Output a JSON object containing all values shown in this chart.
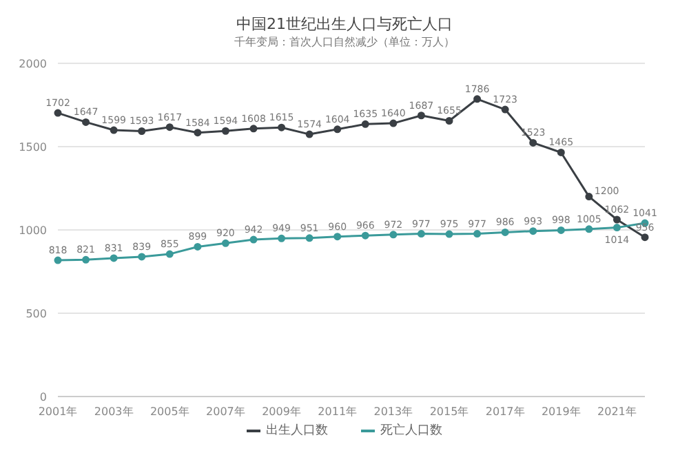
{
  "chart_data": {
    "type": "line",
    "title": "中国21世纪出生人口与死亡人口",
    "subtitle": "千年变局：首次人口自然减少（单位：万人）",
    "categories": [
      "2001年",
      null,
      "2003年",
      null,
      "2005年",
      null,
      "2007年",
      null,
      "2009年",
      null,
      "2011年",
      null,
      "2013年",
      null,
      "2015年",
      null,
      "2017年",
      null,
      "2019年",
      null,
      "2021年",
      null
    ],
    "series": [
      {
        "name": "出生人口数",
        "color": "#3a3f44",
        "values": [
          1702,
          1647,
          1599,
          1593,
          1617,
          1584,
          1594,
          1608,
          1615,
          1574,
          1604,
          1635,
          1640,
          1687,
          1655,
          1786,
          1723,
          1523,
          1465,
          1200,
          1062,
          956
        ]
      },
      {
        "name": "死亡人口数",
        "color": "#3a9a9a",
        "values": [
          818,
          821,
          831,
          839,
          855,
          899,
          920,
          942,
          949,
          951,
          960,
          966,
          972,
          977,
          975,
          977,
          986,
          993,
          998,
          1005,
          1014,
          1041
        ]
      }
    ],
    "ylim": [
      0,
      2000
    ],
    "yticks": [
      0,
      500,
      1000,
      1500,
      2000
    ],
    "grid": "y",
    "legend": "bottom",
    "marker": "circle",
    "line_style": "solid",
    "data_labels": true
  }
}
